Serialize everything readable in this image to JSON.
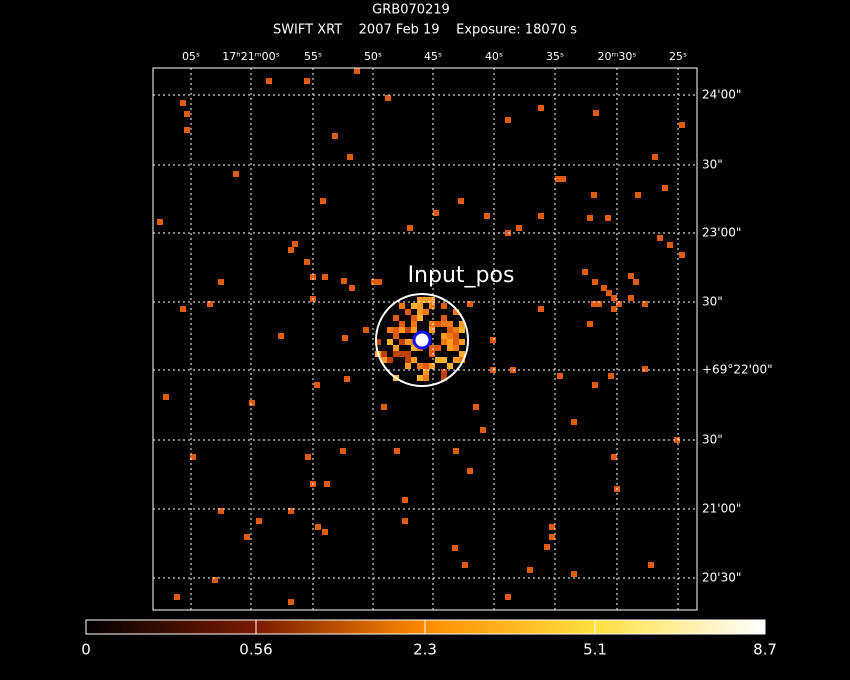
{
  "header": {
    "title": "GRB070219",
    "subtitle": "SWIFT XRT    2007 Feb 19    Exposure: 18070 s"
  },
  "ra_labels": [
    "05ˢ",
    "17ʰ21ᵐ00ˢ",
    "55ˢ",
    "50ˢ",
    "45ˢ",
    "40ˢ",
    "35ˢ",
    "20ᵐ30ˢ",
    "25ˢ"
  ],
  "dec_labels": [
    "24'00\"",
    "30\"",
    "23'00\"",
    "30\"",
    "+69°22'00\"",
    "30\"",
    "21'00\"",
    "20'30\""
  ],
  "source_label": "Input_pos",
  "colorbar_labels": [
    "0",
    "0.56",
    "2.3",
    "5.1",
    "8.7"
  ]
}
